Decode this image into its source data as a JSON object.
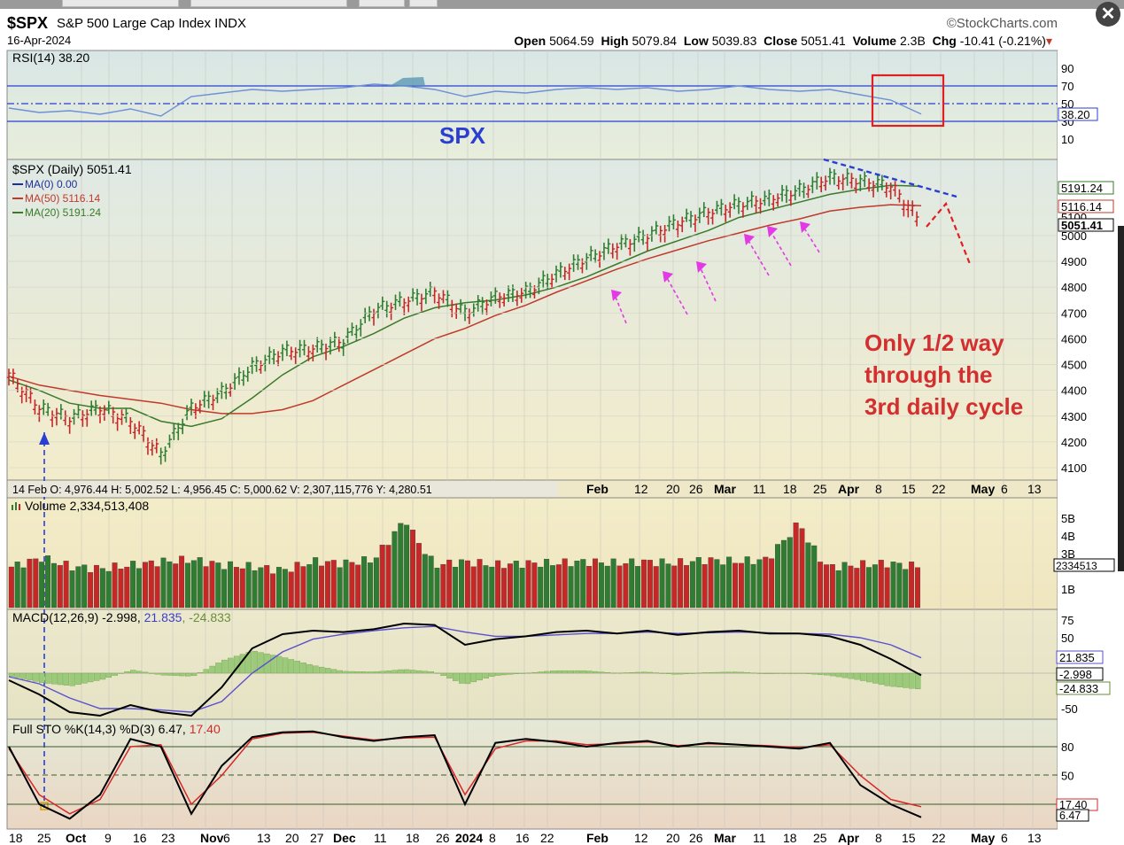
{
  "header": {
    "symbol": "$SPX",
    "name": "S&P 500 Large Cap Index  INDX",
    "date": "16-Apr-2024",
    "brand": "©StockCharts.com",
    "open_label": "Open",
    "open": "5064.59",
    "high_label": "High",
    "high": "5079.84",
    "low_label": "Low",
    "low": "5039.83",
    "close_label": "Close",
    "close": "5051.41",
    "volume_label": "Volume",
    "volume": "2.3B",
    "chg_label": "Chg",
    "chg": "-10.41 (-0.21%)",
    "close_icon": "close-circle-icon"
  },
  "panels": {
    "rsi": {
      "label": "RSI(14) 38.20",
      "big_label": "SPX",
      "ticks": [
        "90",
        "70",
        "50",
        "30",
        "10"
      ],
      "value_tag": "38.20",
      "levels": [
        70,
        50,
        30
      ]
    },
    "price": {
      "label": "$SPX (Daily) 5051.41",
      "ma0": "MA(0) 0.00",
      "ma50": "MA(50) 5116.14",
      "ma20": "MA(20) 5191.24",
      "ticks": [
        "5000",
        "4900",
        "4800",
        "4700",
        "4600",
        "4500",
        "4400",
        "4300",
        "4200",
        "4100"
      ],
      "tag_ma20": "5191.24",
      "tag_ma50": "5116.14",
      "tag_close": "5051.41",
      "tag_extra": "5100",
      "annotation": [
        "Only 1/2 way",
        "through the",
        "3rd daily cycle"
      ],
      "crosshair": "14 Feb O: 4,976.44  H: 5,002.52  L: 4,956.45  C: 5,000.62  V: 2,307,115,776  Y: 4,280.51",
      "xlabels": [
        "Feb",
        "12",
        "20",
        "26",
        "Mar",
        "11",
        "18",
        "25",
        "Apr",
        "8",
        "15",
        "22",
        "May",
        "6",
        "13"
      ]
    },
    "volume": {
      "label": "Volume 2,334,513,408",
      "ticks": [
        "5B",
        "4B",
        "3B",
        "1B"
      ],
      "value_tag": "2334513"
    },
    "macd": {
      "label": "MACD(12,26,9) -2.998,",
      "label_b": "21.835",
      "label_c": ", -24.833",
      "ticks": [
        "75",
        "50",
        "-50"
      ],
      "tag_a": "21.835",
      "tag_b": "-2.998",
      "tag_c": "-24.833"
    },
    "sto": {
      "label": "Full STO %K(14,3) %D(3) 6.47,",
      "label_b": "17.40",
      "ticks": [
        "80",
        "50"
      ],
      "tag_a": "17.40",
      "tag_b": "6.47"
    }
  },
  "bottom_axis": [
    "18",
    "25",
    "Oct",
    "9",
    "16",
    "23",
    "Nov",
    "6",
    "13",
    "20",
    "27",
    "Dec",
    "11",
    "18",
    "26",
    "2024",
    "8",
    "16",
    "22",
    "Feb",
    "12",
    "20",
    "26",
    "Mar",
    "11",
    "18",
    "25",
    "Apr",
    "8",
    "15",
    "22",
    "May",
    "6",
    "13"
  ],
  "colors": {
    "up": "#2e7d32",
    "down": "#c62828",
    "ma20": "#3a7a2a",
    "ma50": "#c0392b",
    "rsi": "#6f8fd6",
    "macd_signal": "#5a4fcf",
    "sto_d": "#d62828",
    "annot": "#d32f2f",
    "trend": "#2a3fd0",
    "magenta": "#e23be5"
  },
  "chart_data": [
    {
      "type": "line",
      "title": "$SPX (Daily) 5051.41",
      "xlabel": "",
      "ylabel": "",
      "x": [
        "2023-09-18",
        "2023-09-25",
        "2023-10-02",
        "2023-10-09",
        "2023-10-16",
        "2023-10-23",
        "2023-10-30",
        "2023-11-06",
        "2023-11-13",
        "2023-11-20",
        "2023-11-27",
        "2023-12-04",
        "2023-12-11",
        "2023-12-18",
        "2023-12-26",
        "2024-01-02",
        "2024-01-08",
        "2024-01-16",
        "2024-01-22",
        "2024-01-29",
        "2024-02-05",
        "2024-02-12",
        "2024-02-20",
        "2024-02-26",
        "2024-03-04",
        "2024-03-11",
        "2024-03-18",
        "2024-03-25",
        "2024-04-01",
        "2024-04-08",
        "2024-04-16"
      ],
      "series": [
        {
          "name": "$SPX",
          "values": [
            4460,
            4330,
            4290,
            4330,
            4280,
            4150,
            4330,
            4390,
            4490,
            4550,
            4560,
            4590,
            4710,
            4745,
            4780,
            4700,
            4760,
            4780,
            4850,
            4910,
            4960,
            5000,
            5050,
            5090,
            5120,
            5140,
            5175,
            5225,
            5210,
            5190,
            5051
          ]
        },
        {
          "name": "MA(50) 5116.14",
          "values": [
            4455,
            4420,
            4400,
            4380,
            4365,
            4350,
            4325,
            4310,
            4310,
            4325,
            4360,
            4420,
            4480,
            4540,
            4600,
            4640,
            4690,
            4730,
            4780,
            4825,
            4870,
            4910,
            4945,
            4980,
            5010,
            5040,
            5065,
            5095,
            5110,
            5120,
            5116
          ]
        },
        {
          "name": "MA(20) 5191.24",
          "values": [
            4440,
            4400,
            4350,
            4330,
            4330,
            4280,
            4260,
            4290,
            4370,
            4460,
            4530,
            4570,
            4620,
            4680,
            4720,
            4740,
            4750,
            4770,
            4800,
            4840,
            4890,
            4940,
            4980,
            5020,
            5070,
            5100,
            5130,
            5160,
            5180,
            5195,
            5191
          ]
        }
      ],
      "ylim": [
        4050,
        5250
      ]
    },
    {
      "type": "line",
      "title": "RSI(14) 38.20",
      "series": [
        {
          "name": "RSI(14)",
          "values": [
            45,
            40,
            42,
            38,
            44,
            36,
            58,
            62,
            66,
            64,
            66,
            68,
            72,
            70,
            66,
            58,
            64,
            62,
            66,
            68,
            66,
            68,
            64,
            66,
            70,
            66,
            64,
            66,
            60,
            54,
            38.2
          ]
        }
      ],
      "ylim": [
        0,
        100
      ]
    },
    {
      "type": "bar",
      "title": "Volume 2,334,513,408",
      "values": [
        2.3,
        2.8,
        2.3,
        2.2,
        2.4,
        2.6,
        2.7,
        2.4,
        2.3,
        2.1,
        2.6,
        2.5,
        2.7,
        4.9,
        2.4,
        2.6,
        2.4,
        2.5,
        2.5,
        2.6,
        2.5,
        2.6,
        2.5,
        2.7,
        2.6,
        2.7,
        4.6,
        2.3,
        2.4,
        2.5,
        2.33
      ]
    },
    {
      "type": "line",
      "title": "MACD(12,26,9) -2.998, 21.835, -24.833",
      "series": [
        {
          "name": "MACD",
          "values": [
            -10,
            -30,
            -55,
            -60,
            -45,
            -55,
            -60,
            -20,
            35,
            55,
            60,
            58,
            62,
            70,
            68,
            40,
            48,
            52,
            58,
            60,
            56,
            60,
            54,
            58,
            60,
            56,
            56,
            52,
            40,
            20,
            -3
          ]
        },
        {
          "name": "Signal",
          "values": [
            -5,
            -15,
            -35,
            -50,
            -50,
            -52,
            -55,
            -40,
            0,
            30,
            48,
            55,
            60,
            64,
            66,
            58,
            52,
            52,
            54,
            56,
            56,
            58,
            56,
            57,
            58,
            57,
            56,
            55,
            50,
            40,
            21.8
          ]
        }
      ],
      "ylim": [
        -75,
        90
      ]
    },
    {
      "type": "line",
      "title": "Full STO %K(14,3) %D(3) 6.47, 17.40",
      "series": [
        {
          "name": "%K",
          "values": [
            80,
            20,
            5,
            30,
            88,
            80,
            10,
            60,
            90,
            95,
            96,
            90,
            86,
            90,
            92,
            20,
            84,
            88,
            85,
            80,
            84,
            86,
            80,
            84,
            82,
            80,
            78,
            84,
            40,
            20,
            6.47
          ]
        },
        {
          "name": "%D",
          "values": [
            78,
            30,
            10,
            25,
            80,
            82,
            20,
            50,
            88,
            94,
            95,
            91,
            87,
            89,
            90,
            30,
            78,
            86,
            86,
            82,
            83,
            85,
            81,
            83,
            82,
            81,
            79,
            82,
            50,
            25,
            17.4
          ]
        }
      ],
      "ylim": [
        0,
        100
      ]
    }
  ]
}
